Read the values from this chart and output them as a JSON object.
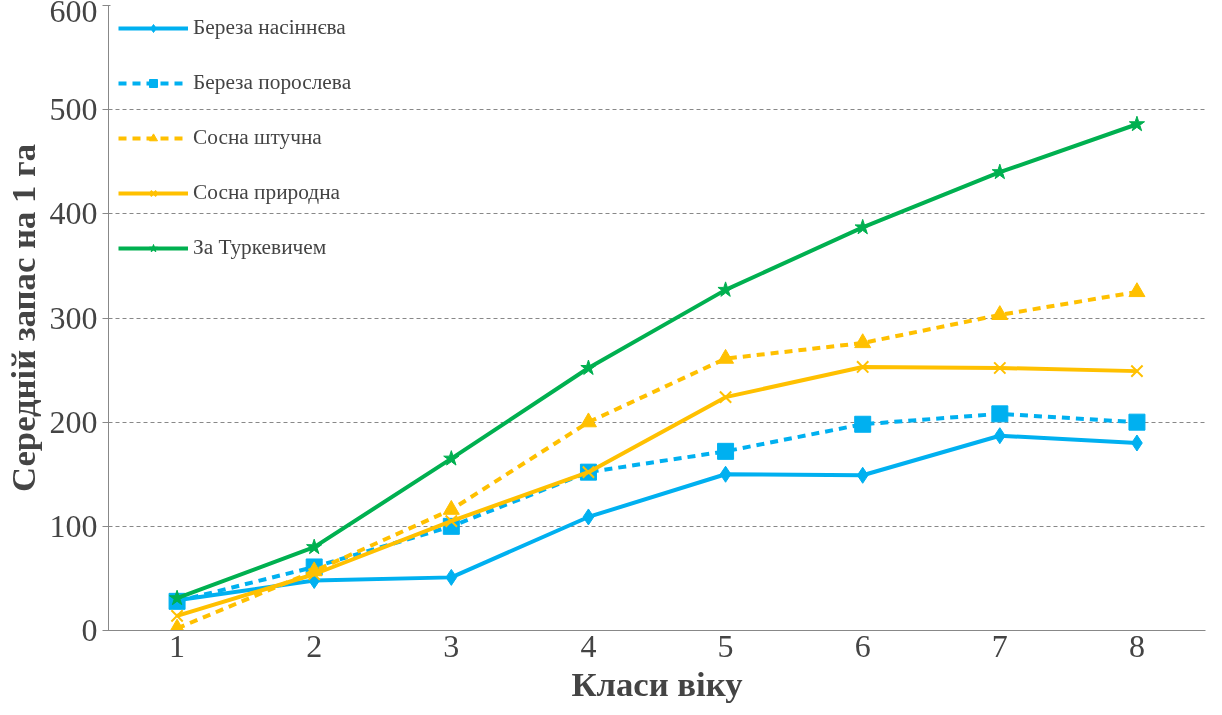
{
  "chart_data": {
    "type": "line",
    "xlabel": "Класи віку",
    "ylabel": "Середній запас на 1 га",
    "categories": [
      "1",
      "2",
      "3",
      "4",
      "5",
      "6",
      "7",
      "8"
    ],
    "ylim": [
      0,
      600
    ],
    "yticks": [
      0,
      100,
      200,
      300,
      400,
      500,
      600
    ],
    "grid": "y",
    "legend": "top left",
    "series": [
      {
        "name": "Береза насіннєва",
        "color": "#00b0f0",
        "marker": "diamond",
        "line_style": "solid",
        "values": [
          29,
          48,
          51,
          109,
          150,
          149,
          187,
          180
        ]
      },
      {
        "name": "Береза порослева",
        "color": "#00b0f0",
        "marker": "square",
        "line_style": "dashed",
        "values": [
          28,
          61,
          100,
          152,
          172,
          198,
          208,
          200
        ]
      },
      {
        "name": "Сосна штучна",
        "color": "#ffc000",
        "marker": "triangle",
        "line_style": "dashed",
        "values": [
          2,
          57,
          116,
          200,
          261,
          276,
          303,
          325
        ]
      },
      {
        "name": "Сосна природна",
        "color": "#ffc000",
        "marker": "cross",
        "line_style": "solid",
        "values": [
          14,
          54,
          105,
          152,
          224,
          253,
          252,
          249
        ]
      },
      {
        "name": "За Туркевичем",
        "color": "#00b050",
        "marker": "star",
        "line_style": "solid",
        "values": [
          31,
          80,
          165,
          252,
          327,
          387,
          440,
          486
        ]
      }
    ]
  }
}
